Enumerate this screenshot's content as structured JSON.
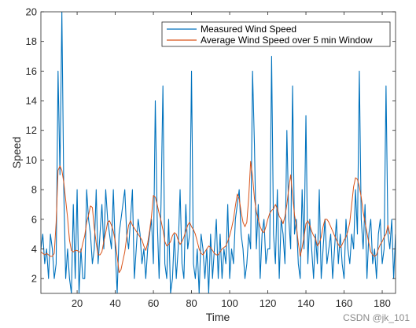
{
  "chart_data": {
    "type": "line",
    "xlabel": "Time",
    "ylabel": "Speed",
    "xlim": [
      1,
      187
    ],
    "ylim": [
      1,
      20
    ],
    "xticks": [
      20,
      40,
      60,
      80,
      100,
      120,
      140,
      160,
      180
    ],
    "yticks": [
      2,
      4,
      6,
      8,
      10,
      12,
      14,
      16,
      18,
      20
    ],
    "grid": false,
    "legend_placement": "top-right",
    "colors": {
      "measured": "#0072BD",
      "average": "#D95319",
      "axis": "#262626"
    },
    "series": [
      {
        "name": "Measured Wind Speed",
        "color": "#0072BD",
        "values": [
          4,
          5,
          3,
          4,
          2,
          5,
          4,
          2,
          3,
          16,
          9,
          20,
          8,
          2,
          4,
          2,
          1,
          7,
          2,
          8,
          1,
          4,
          2,
          2,
          8,
          6,
          5,
          3,
          4,
          8,
          3,
          5,
          7,
          4,
          8,
          6,
          5,
          4,
          8,
          4,
          1,
          5,
          6,
          7,
          8,
          5,
          4,
          6,
          8,
          2,
          4,
          6,
          5,
          3,
          4,
          2,
          4,
          5,
          6,
          3,
          14,
          6,
          2,
          7,
          15,
          3,
          2,
          6,
          1,
          2,
          5,
          2,
          4,
          8,
          3,
          2,
          7,
          4,
          5,
          16,
          3,
          2,
          4,
          1,
          5,
          4,
          2,
          4,
          1,
          5,
          2,
          4,
          6,
          2,
          5,
          2,
          4,
          3,
          7,
          2,
          4,
          3,
          6,
          7,
          8,
          5,
          4,
          2,
          3,
          5,
          4,
          16,
          11,
          4,
          7,
          2,
          5,
          6,
          3,
          4,
          4,
          17,
          5,
          3,
          8,
          2,
          6,
          5,
          3,
          12,
          6,
          4,
          15,
          5,
          6,
          3,
          2,
          8,
          4,
          13,
          3,
          6,
          4,
          2,
          5,
          3,
          8,
          2,
          4,
          6,
          3,
          4,
          5,
          2,
          4,
          6,
          3,
          5,
          3,
          2,
          6,
          4,
          3,
          5,
          4,
          8,
          5,
          16,
          6,
          4,
          7,
          2,
          5,
          6,
          3,
          4,
          2,
          5,
          6,
          3,
          4,
          15,
          5,
          4,
          6,
          2,
          5
        ]
      },
      {
        "name": "Average Wind Speed over 5 min Window",
        "color": "#D95319",
        "values": [
          3.8,
          3.7,
          3.6,
          3.7,
          3.6,
          3.5,
          3.5,
          3.7,
          5.8,
          9.3,
          9.6,
          9.3,
          8.5,
          7.3,
          6.1,
          4.6,
          3.9,
          3.8,
          3.9,
          3.9,
          3.8,
          3.8,
          4.4,
          4.9,
          5.8,
          6.3,
          6.9,
          6.8,
          5.4,
          4.4,
          3.6,
          3.6,
          3.8,
          4.5,
          5.1,
          5.8,
          5.9,
          5.6,
          5.2,
          4.5,
          3.5,
          2.4,
          2.6,
          3.2,
          3.8,
          4.8,
          5.6,
          5.9,
          5.6,
          5.4,
          5.2,
          5.0,
          4.8,
          4.6,
          4.2,
          3.9,
          4.4,
          5.2,
          6.2,
          7.6,
          7.5,
          7.0,
          6.4,
          5.9,
          5.3,
          4.5,
          4.2,
          4.3,
          4.5,
          4.9,
          5.1,
          5.0,
          4.6,
          4.3,
          4.5,
          4.8,
          5.2,
          5.6,
          5.8,
          5.5,
          5.3,
          5.0,
          4.5,
          4.0,
          3.7,
          3.6,
          3.8,
          4.0,
          4.2,
          4.1,
          3.9,
          3.7,
          3.6,
          3.6,
          3.8,
          4.0,
          4.1,
          4.2,
          4.5,
          4.9,
          5.4,
          6.0,
          6.9,
          7.7,
          7.4,
          6.5,
          5.8,
          5.5,
          5.8,
          7.5,
          9.9,
          8.9,
          7.4,
          6.5,
          6.0,
          5.5,
          5.2,
          5.1,
          5.5,
          6.0,
          6.4,
          6.6,
          6.7,
          7.0,
          6.7,
          6.2,
          6.0,
          5.7,
          6.2,
          7.0,
          8.1,
          9.0,
          7.6,
          6.3,
          5.5,
          4.4,
          3.5,
          4.1,
          4.8,
          5.7,
          5.9,
          5.6,
          5.2,
          4.9,
          4.7,
          4.2,
          4.4,
          4.8,
          5.5,
          6.0,
          6.0,
          5.8,
          5.5,
          5.2,
          4.9,
          4.6,
          4.3,
          4.1,
          4.3,
          4.6,
          4.8,
          5.2,
          5.8,
          7.0,
          8.2,
          8.8,
          8.7,
          8.2,
          7.5,
          6.5,
          5.8,
          5.1,
          4.4,
          3.8,
          3.6,
          3.5,
          3.6,
          4.0,
          4.3,
          4.5,
          4.8,
          5.0,
          5.6,
          5.0
        ]
      }
    ]
  },
  "watermark": "CSDN @jk_101"
}
